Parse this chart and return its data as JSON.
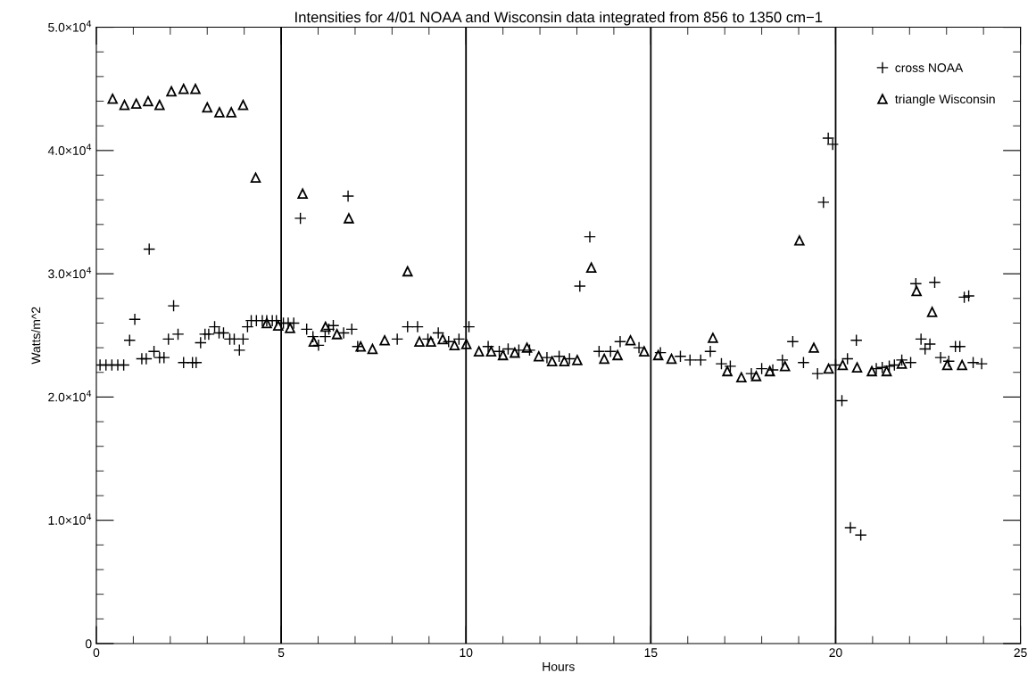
{
  "chart_data": {
    "type": "scatter",
    "title": "Intensities for 4/01 NOAA and Wisconsin data integrated from 856 to 1350 cm−1",
    "xlabel": "Hours",
    "ylabel": "Watts/m^2",
    "xlim": [
      0,
      25
    ],
    "xticks": [
      0,
      5,
      10,
      15,
      20,
      25
    ],
    "ylim": [
      0,
      50000
    ],
    "yticks": [
      {
        "value": 0,
        "label": "0"
      },
      {
        "value": 10000,
        "label": "1.0×10$^{4}$"
      },
      {
        "value": 20000,
        "label": "2.0×10$^{4}$"
      },
      {
        "value": 30000,
        "label": "3.0×10$^{4}$"
      },
      {
        "value": 40000,
        "label": "4.0×10$^{4}$"
      },
      {
        "value": 50000,
        "label": "5.0×10$^{4}$"
      }
    ],
    "grid": false,
    "legend": "top right",
    "ref_lines": [
      {
        "axis": "x",
        "value": 5,
        "color": "#000000"
      },
      {
        "axis": "x",
        "value": 10,
        "color": "#000000"
      },
      {
        "axis": "x",
        "value": 15,
        "color": "#000000"
      },
      {
        "axis": "x",
        "value": 20,
        "color": "#000000"
      }
    ],
    "series": [
      {
        "name": "cross NOAA",
        "color": "#000000",
        "marker": "cross",
        "x": [
          0.1,
          0.26,
          0.42,
          0.58,
          0.74,
          0.9,
          1.04,
          1.23,
          1.35,
          1.43,
          1.56,
          1.71,
          1.83,
          1.95,
          2.09,
          2.21,
          2.36,
          2.6,
          2.7,
          2.82,
          2.94,
          3.04,
          3.2,
          3.32,
          3.44,
          3.61,
          3.73,
          3.87,
          3.97,
          4.09,
          4.19,
          4.33,
          4.49,
          4.61,
          4.76,
          4.87,
          5.06,
          5.19,
          5.34,
          5.52,
          5.69,
          5.86,
          6.01,
          6.19,
          6.29,
          6.41,
          6.69,
          6.81,
          6.91,
          7.07,
          8.14,
          8.42,
          8.69,
          8.97,
          9.25,
          9.53,
          9.81,
          10.08,
          10.6,
          10.9,
          11.14,
          11.43,
          11.72,
          12.19,
          12.52,
          12.8,
          13.08,
          13.35,
          13.6,
          13.91,
          14.17,
          14.68,
          15.26,
          15.8,
          16.06,
          16.35,
          16.61,
          16.91,
          17.15,
          17.72,
          18.0,
          18.3,
          18.56,
          18.84,
          19.13,
          19.51,
          19.67,
          19.8,
          19.92,
          20.0,
          20.17,
          20.32,
          20.4,
          20.56,
          20.68,
          21.1,
          21.26,
          21.45,
          21.59,
          21.79,
          22.03,
          22.17,
          22.31,
          22.42,
          22.55,
          22.68,
          22.84,
          23.06,
          23.24,
          23.36,
          23.48,
          23.6,
          23.72,
          23.95
        ],
        "values": [
          22600,
          22600,
          22600,
          22600,
          22600,
          24600,
          26300,
          23100,
          23100,
          32000,
          23700,
          23200,
          23200,
          24700,
          27400,
          25100,
          22800,
          22800,
          22800,
          24400,
          25100,
          25100,
          25700,
          25200,
          25200,
          24700,
          24700,
          23800,
          24700,
          25700,
          26200,
          26200,
          26200,
          26200,
          26200,
          26200,
          26000,
          26000,
          26000,
          34500,
          25500,
          24900,
          24200,
          24900,
          25500,
          25800,
          25200,
          36300,
          25500,
          24100,
          24700,
          25700,
          25700,
          24700,
          25200,
          24500,
          24700,
          25700,
          24100,
          23700,
          23900,
          23800,
          23800,
          23200,
          23300,
          23100,
          29000,
          33000,
          23700,
          23700,
          24500,
          24000,
          23600,
          23300,
          23000,
          23000,
          23700,
          22700,
          22500,
          21900,
          22300,
          22200,
          23000,
          24500,
          22800,
          21900,
          35800,
          41000,
          40500,
          22600,
          19700,
          23100,
          9400,
          24600,
          8800,
          22300,
          22400,
          22500,
          22600,
          23000,
          22800,
          29200,
          24700,
          23900,
          24300,
          29300,
          23200,
          22900,
          24100,
          24100,
          28100,
          28200,
          22800,
          22700
        ]
      },
      {
        "name": "triangle Wisconsin",
        "color": "#000000",
        "marker": "triangle",
        "x": [
          0.44,
          0.76,
          1.08,
          1.4,
          1.71,
          2.03,
          2.36,
          2.68,
          3.0,
          3.33,
          3.65,
          3.97,
          4.31,
          4.61,
          4.92,
          5.24,
          5.58,
          5.88,
          6.2,
          6.51,
          6.83,
          7.15,
          7.47,
          7.8,
          8.42,
          8.74,
          9.05,
          9.37,
          9.69,
          10.01,
          10.35,
          10.68,
          11.0,
          11.32,
          11.65,
          11.97,
          12.33,
          12.66,
          13.01,
          13.39,
          13.74,
          14.1,
          14.45,
          14.82,
          15.2,
          15.56,
          16.68,
          17.07,
          17.45,
          17.85,
          18.22,
          18.63,
          19.02,
          19.41,
          19.81,
          20.19,
          20.58,
          20.98,
          21.38,
          21.79,
          22.19,
          22.61,
          23.02,
          23.42
        ],
        "values": [
          44200,
          43700,
          43800,
          44000,
          43700,
          44800,
          45000,
          45000,
          43500,
          43100,
          43100,
          43700,
          37800,
          26000,
          25800,
          25600,
          36500,
          24500,
          25700,
          25100,
          34500,
          24100,
          23900,
          24600,
          30200,
          24500,
          24500,
          24700,
          24200,
          24300,
          23700,
          23700,
          23400,
          23600,
          24000,
          23300,
          22900,
          22900,
          23000,
          30500,
          23100,
          23400,
          24600,
          23700,
          23400,
          23100,
          24800,
          22100,
          21600,
          21700,
          22100,
          22500,
          32700,
          24000,
          22300,
          22600,
          22400,
          22100,
          22100,
          22700,
          28600,
          26900,
          22600,
          22600
        ]
      }
    ]
  }
}
